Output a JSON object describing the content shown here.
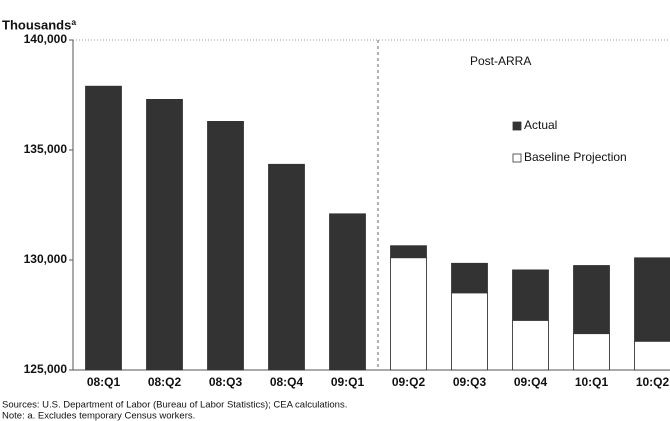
{
  "chart_data": {
    "type": "bar",
    "y_label": "Thousandsª",
    "annotation": "Post-ARRA",
    "categories": [
      "08:Q1",
      "08:Q2",
      "08:Q3",
      "08:Q4",
      "09:Q1",
      "09:Q2",
      "09:Q3",
      "09:Q4",
      "10:Q1",
      "10:Q2"
    ],
    "series": [
      {
        "name": "Actual",
        "color": "#333333",
        "values": [
          137900,
          137300,
          136300,
          134350,
          132100,
          130650,
          129850,
          129550,
          129750,
          130100
        ]
      },
      {
        "name": "Baseline Projection",
        "color": "#ffffff",
        "values": [
          null,
          null,
          null,
          null,
          null,
          130100,
          128500,
          127250,
          126650,
          126300
        ]
      }
    ],
    "ylim": [
      125000,
      140000
    ],
    "yticks": [
      {
        "value": 125000,
        "label": "125,000"
      },
      {
        "value": 130000,
        "label": "130,000"
      },
      {
        "value": 135000,
        "label": "135,000"
      },
      {
        "value": 140000,
        "label": "140,000"
      }
    ],
    "sources": "Sources: U.S. Department of Labor (Bureau of Labor Statistics); CEA calculations.",
    "note": "Note:  a. Excludes temporary Census workers."
  }
}
